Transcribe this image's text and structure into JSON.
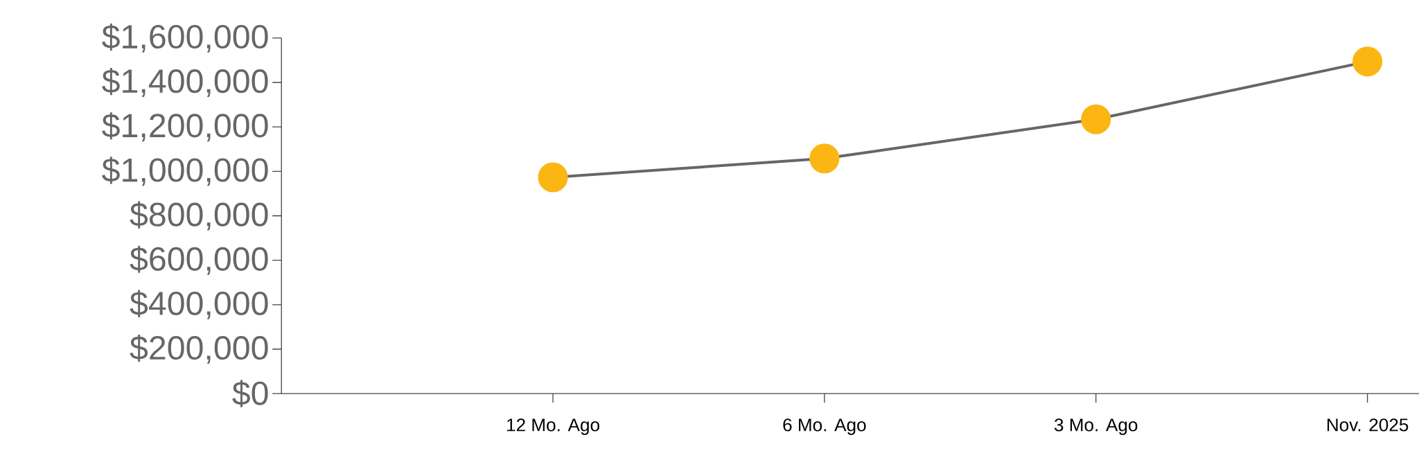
{
  "chart_data": {
    "type": "line",
    "categories": [
      "12 Mo. Ago",
      "6 Mo. Ago",
      "3 Mo. Ago",
      "Nov. 2025"
    ],
    "series": [
      {
        "color": "#fbb614",
        "values": [
          973000,
          1058000,
          1234000,
          1494000
        ]
      }
    ],
    "marker": "circle",
    "line_style": "solid",
    "grid": false,
    "ylim": [
      0,
      1600000
    ],
    "yticks": [
      {
        "value": 0,
        "label": "$0"
      },
      {
        "value": 200000,
        "label": "$200,000"
      },
      {
        "value": 400000,
        "label": "$400,000"
      },
      {
        "value": 600000,
        "label": "$600,000"
      },
      {
        "value": 800000,
        "label": "$800,000"
      },
      {
        "value": 1000000,
        "label": "$1,000,000"
      },
      {
        "value": 1200000,
        "label": "$1,200,000"
      },
      {
        "value": 1400000,
        "label": "$1,400,000"
      },
      {
        "value": 1600000,
        "label": "$1,600,000"
      }
    ]
  }
}
